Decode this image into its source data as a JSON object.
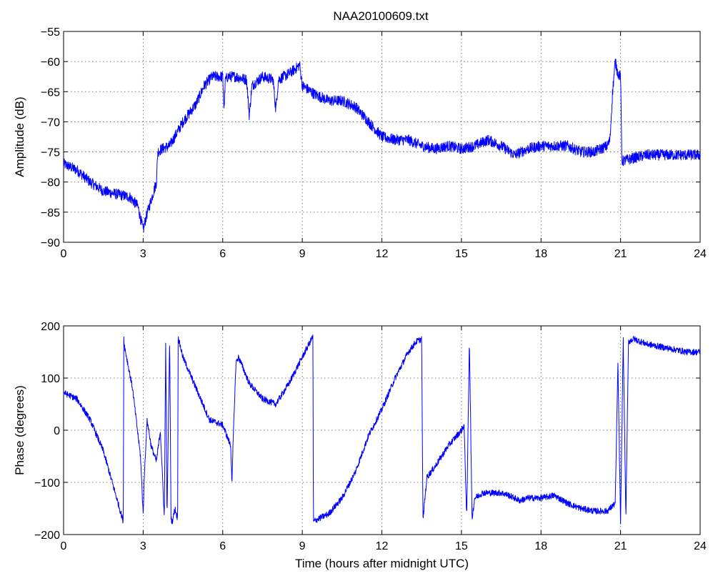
{
  "title": "NAA20100609.txt",
  "chart_data": [
    {
      "type": "line",
      "ylabel": "Amplitude (dB)",
      "xlabel": "",
      "xlim": [
        0,
        24
      ],
      "ylim": [
        -90,
        -55
      ],
      "xticks": [
        0,
        3,
        6,
        9,
        12,
        15,
        18,
        21,
        24
      ],
      "yticks": [
        -90,
        -85,
        -80,
        -75,
        -70,
        -65,
        -60,
        -55
      ],
      "grid": true,
      "color": "#0000ff",
      "series": [
        {
          "x": [
            0,
            0.5,
            1.0,
            1.5,
            2.0,
            2.5,
            2.8,
            3.0,
            3.1,
            3.3,
            3.5,
            3.55,
            3.7,
            4.0,
            4.5,
            5.0,
            5.3,
            5.6,
            6.0,
            6.05,
            6.1,
            6.2,
            6.5,
            6.9,
            7.0,
            7.1,
            7.5,
            7.9,
            8.0,
            8.1,
            8.5,
            8.8,
            8.9,
            9.0,
            9.5,
            10.0,
            10.5,
            11.0,
            11.5,
            12.0,
            12.5,
            13.0,
            13.5,
            14.0,
            14.5,
            15.0,
            15.5,
            16.0,
            16.5,
            17.0,
            17.5,
            18.0,
            18.5,
            19.0,
            19.5,
            20.0,
            20.5,
            20.6,
            20.7,
            20.8,
            20.9,
            21.0,
            21.05,
            21.1,
            21.5,
            22.0,
            22.5,
            23.0,
            23.5,
            24.0
          ],
          "y": [
            -77,
            -78,
            -80,
            -81.5,
            -82,
            -82.5,
            -84,
            -88,
            -86,
            -83,
            -80,
            -75,
            -74.5,
            -74,
            -70,
            -67,
            -64,
            -62.5,
            -62.5,
            -68,
            -63,
            -62.5,
            -62.5,
            -63,
            -69,
            -64,
            -62.5,
            -63,
            -68,
            -63,
            -62,
            -61,
            -60.5,
            -64,
            -65.5,
            -66.5,
            -66.5,
            -67.5,
            -70,
            -72.5,
            -73,
            -73,
            -74,
            -74.5,
            -74,
            -74.5,
            -74,
            -73,
            -74,
            -75.5,
            -74.5,
            -74,
            -74,
            -74,
            -75,
            -75,
            -74,
            -73,
            -65,
            -60,
            -62,
            -62.5,
            -76.5,
            -76.5,
            -76,
            -75.5,
            -75.5,
            -75.5,
            -75.5,
            -75.5
          ]
        }
      ]
    },
    {
      "type": "line",
      "ylabel": "Phase (degrees)",
      "xlabel": "Time (hours after midnight UTC)",
      "xlim": [
        0,
        24
      ],
      "ylim": [
        -200,
        200
      ],
      "xticks": [
        0,
        3,
        6,
        9,
        12,
        15,
        18,
        21,
        24
      ],
      "yticks": [
        -200,
        -100,
        0,
        100,
        200
      ],
      "grid": true,
      "color": "#0000ff",
      "series": [
        {
          "x": [
            0,
            0.5,
            1.0,
            1.5,
            2.0,
            2.25,
            2.27,
            2.3,
            2.6,
            2.9,
            3.0,
            3.05,
            3.15,
            3.3,
            3.5,
            3.65,
            3.8,
            3.85,
            3.9,
            4.0,
            4.05,
            4.1,
            4.2,
            4.3,
            4.32,
            4.5,
            5.0,
            5.5,
            6.0,
            6.3,
            6.35,
            6.4,
            6.5,
            6.6,
            7.0,
            7.5,
            8.0,
            8.5,
            9.0,
            9.4,
            9.42,
            9.6,
            10.0,
            10.5,
            11.0,
            11.5,
            12.0,
            12.5,
            13.0,
            13.3,
            13.5,
            13.55,
            13.7,
            14.0,
            14.5,
            15.0,
            15.1,
            15.2,
            15.3,
            15.4,
            15.5,
            15.8,
            16.5,
            16.8,
            17.0,
            17.2,
            17.5,
            18.0,
            18.5,
            19.0,
            19.5,
            20.0,
            20.5,
            20.8,
            20.9,
            21.0,
            21.1,
            21.2,
            21.3,
            21.5,
            22.0,
            22.5,
            23.0,
            23.5,
            24.0
          ],
          "y": [
            72,
            60,
            20,
            -40,
            -130,
            -175,
            178,
            160,
            80,
            -50,
            -160,
            -80,
            20,
            -30,
            -60,
            0,
            -170,
            178,
            -170,
            178,
            -170,
            -175,
            -150,
            -170,
            178,
            140,
            80,
            20,
            10,
            -30,
            -100,
            -10,
            130,
            140,
            90,
            60,
            50,
            90,
            140,
            180,
            -175,
            -170,
            -160,
            -130,
            -80,
            -10,
            40,
            100,
            150,
            170,
            175,
            -170,
            -90,
            -70,
            -30,
            0,
            10,
            -170,
            175,
            -170,
            -130,
            -120,
            -120,
            -125,
            -130,
            -135,
            -130,
            -130,
            -125,
            -140,
            -150,
            -155,
            -155,
            -140,
            130,
            -180,
            178,
            -170,
            170,
            175,
            165,
            160,
            155,
            150,
            150
          ]
        }
      ]
    }
  ]
}
